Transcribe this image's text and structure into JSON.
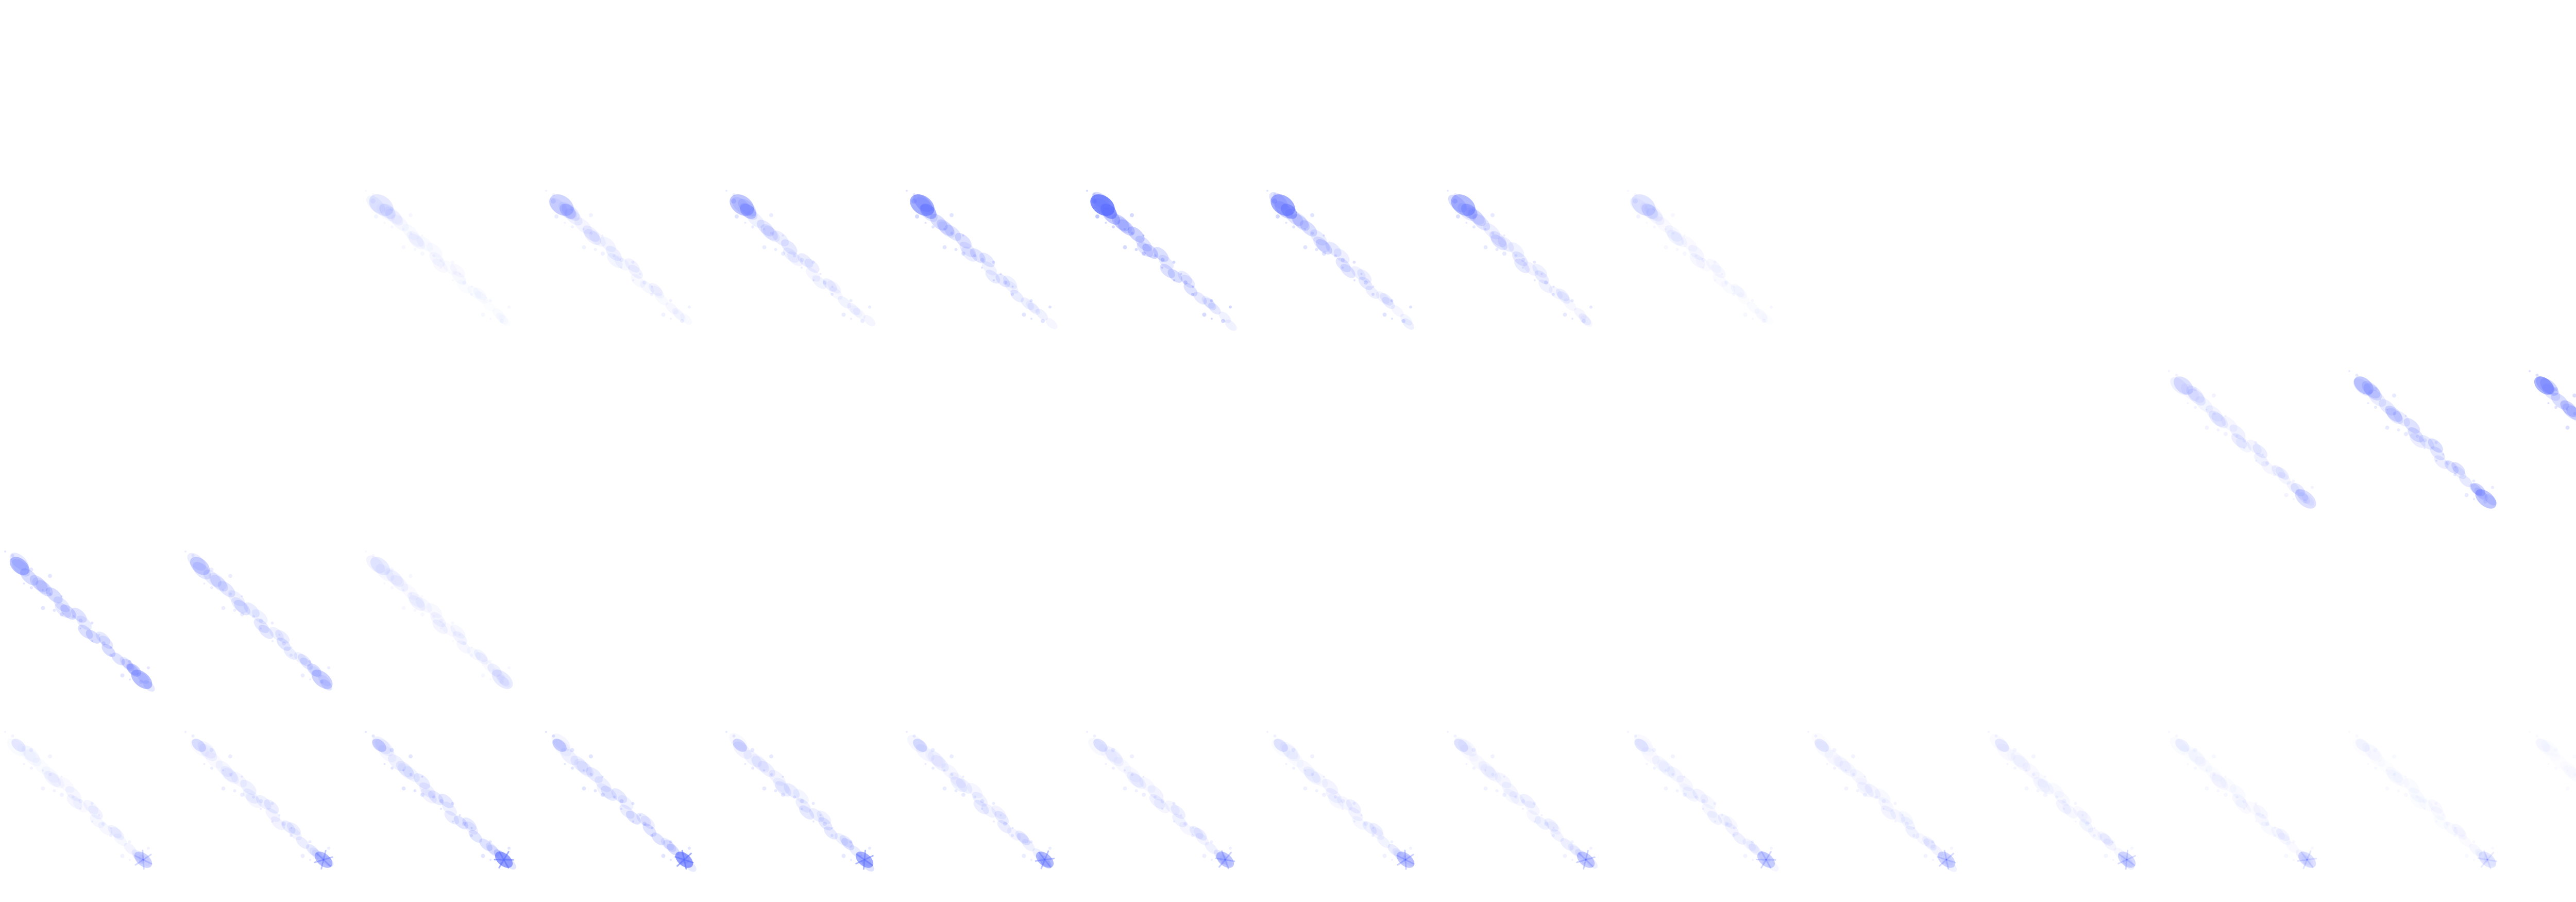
{
  "sprite_sheet": {
    "color": "#5a6cff",
    "rows": [
      {
        "name": "row-1",
        "frames": []
      },
      {
        "name": "row-2",
        "effect": "streak-head-top",
        "opacities": [
          0.0,
          0.0,
          0.14,
          0.26,
          0.36,
          0.5,
          0.72,
          0.52,
          0.42,
          0.16,
          0.0,
          0.0,
          0.0,
          0.0,
          0.0
        ]
      },
      {
        "name": "row-3",
        "effect": "streak-full",
        "opacities": [
          0.0,
          0.0,
          0.0,
          0.0,
          0.0,
          0.0,
          0.0,
          0.0,
          0.0,
          0.0,
          0.0,
          0.0,
          0.22,
          0.4,
          0.56
        ]
      },
      {
        "name": "row-4",
        "effect": "streak-full",
        "opacities": [
          0.46,
          0.32,
          0.14,
          0.0,
          0.0,
          0.0,
          0.0,
          0.0,
          0.0,
          0.0,
          0.0,
          0.0,
          0.0,
          0.0,
          0.0
        ]
      },
      {
        "name": "row-5",
        "effect": "streak-impact-bottom",
        "opacities": [
          0.22,
          0.34,
          0.48,
          0.5,
          0.42,
          0.36,
          0.3,
          0.28,
          0.26,
          0.24,
          0.22,
          0.2,
          0.16,
          0.12,
          0.08
        ]
      }
    ]
  }
}
